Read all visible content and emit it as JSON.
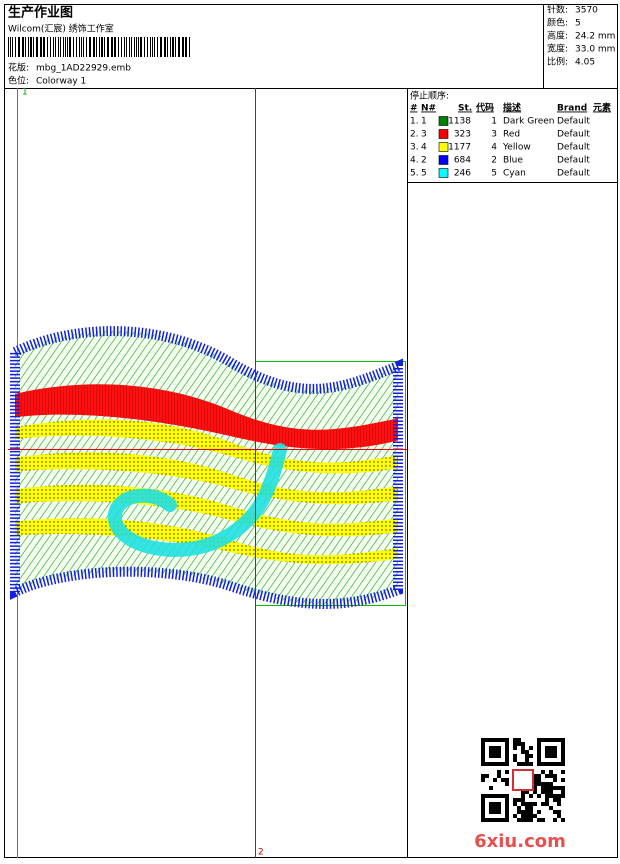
{
  "header": {
    "title": "生产作业图",
    "subtitle": "Wilcom(汇宸) 绣饰工作室",
    "design": {
      "label": "花版:",
      "value": "mbg_1AD22929.emb"
    },
    "colorway": {
      "label": "色位:",
      "value": "Colorway 1"
    }
  },
  "stats": [
    {
      "label": "针数:",
      "value": "3570"
    },
    {
      "label": "颜色:",
      "value": "5"
    },
    {
      "label": "高度:",
      "value": "24.2 mm"
    },
    {
      "label": "宽度:",
      "value": "33.0 mm"
    },
    {
      "label": "比例:",
      "value": "4.05"
    }
  ],
  "sequence": {
    "title": "停止顺序:",
    "columns": [
      "#",
      "N#",
      "St.",
      "代码",
      "描述",
      "Brand",
      "元素"
    ],
    "rows": [
      {
        "stop": "1.",
        "needle": "1",
        "color": "#008000",
        "stitches": "1138",
        "code": "1",
        "description": "Dark Green",
        "brand": "Default"
      },
      {
        "stop": "2.",
        "needle": "3",
        "color": "#ff0000",
        "stitches": "323",
        "code": "3",
        "description": "Red",
        "brand": "Default"
      },
      {
        "stop": "3.",
        "needle": "4",
        "color": "#ffff00",
        "stitches": "1177",
        "code": "4",
        "description": "Yellow",
        "brand": "Default"
      },
      {
        "stop": "4.",
        "needle": "2",
        "color": "#0000ff",
        "stitches": "684",
        "code": "2",
        "description": "Blue",
        "brand": "Default"
      },
      {
        "stop": "5.",
        "needle": "5",
        "color": "#00ffff",
        "stitches": "246",
        "code": "5",
        "description": "Cyan",
        "brand": "Default"
      }
    ]
  },
  "markers": {
    "left": "1",
    "bottom": "2"
  },
  "watermark": "6xiu.com"
}
